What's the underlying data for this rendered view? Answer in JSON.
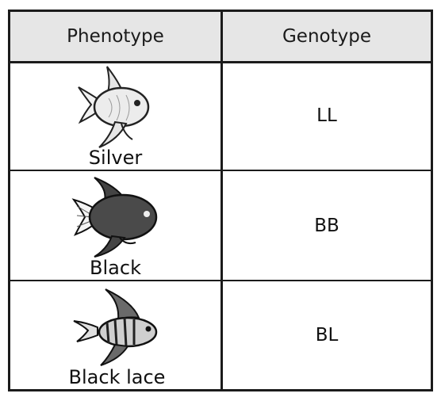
{
  "table": {
    "headers": {
      "phenotype": "Phenotype",
      "genotype": "Genotype"
    },
    "rows": [
      {
        "phenotype": "Silver",
        "genotype": "LL",
        "icon": "silver-angelfish-icon"
      },
      {
        "phenotype": "Black",
        "genotype": "BB",
        "icon": "black-angelfish-icon"
      },
      {
        "phenotype": "Black lace",
        "genotype": "BL",
        "icon": "black-lace-angelfish-icon"
      }
    ]
  },
  "colors": {
    "border": "#1b1b1b",
    "header_bg": "#e6e6e6"
  }
}
